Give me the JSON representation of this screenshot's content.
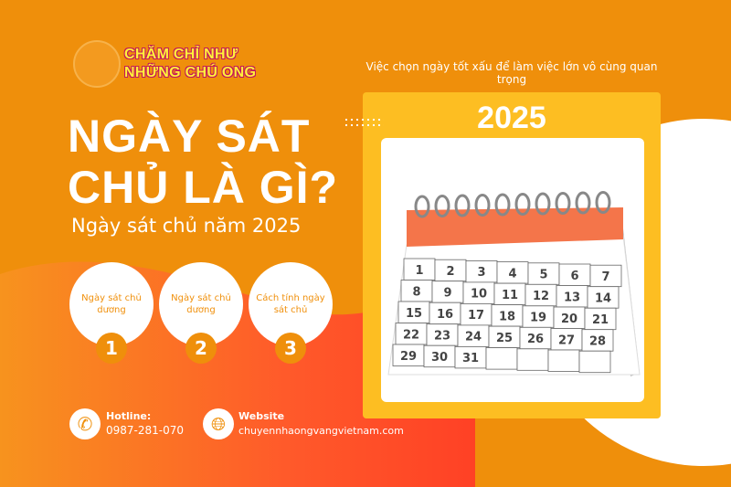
{
  "brand": {
    "line1": "CHĂM CHỈ NHƯ",
    "line2": "NHỮNG CHÚ ONG"
  },
  "title": {
    "line1": "NGÀY SÁT",
    "line2": "CHỦ LÀ GÌ?"
  },
  "subtitle": "Ngày sát chủ năm 2025",
  "topics": [
    {
      "label": "Ngày sát chủ dương",
      "number": "1"
    },
    {
      "label": "Ngày sát chủ dương",
      "number": "2"
    },
    {
      "label": "Cách tính ngày sát chủ",
      "number": "3"
    }
  ],
  "contact": {
    "hotline_label": "Hotline:",
    "hotline": "0987-281-070",
    "hotline_icon": "phone-icon",
    "website_label": "Website",
    "website": "chuyennhaongvangvietnam.com",
    "website_icon": "globe-icon"
  },
  "tagline": "Việc chọn ngày tốt xấu để làm việc lớn vô cùng quan trọng",
  "year": "2025",
  "calendar_days": [
    "1",
    "2",
    "3",
    "4",
    "5",
    "6",
    "7",
    "8",
    "9",
    "10",
    "11",
    "12",
    "13",
    "14",
    "15",
    "16",
    "17",
    "18",
    "19",
    "20",
    "21",
    "22",
    "23",
    "24",
    "25",
    "26",
    "27",
    "28",
    "29",
    "30",
    "31"
  ],
  "colors": {
    "background": "#EF8F0B",
    "accent_red": "#FF4B2B",
    "card": "#FDBE22",
    "white": "#FFFFFF"
  }
}
